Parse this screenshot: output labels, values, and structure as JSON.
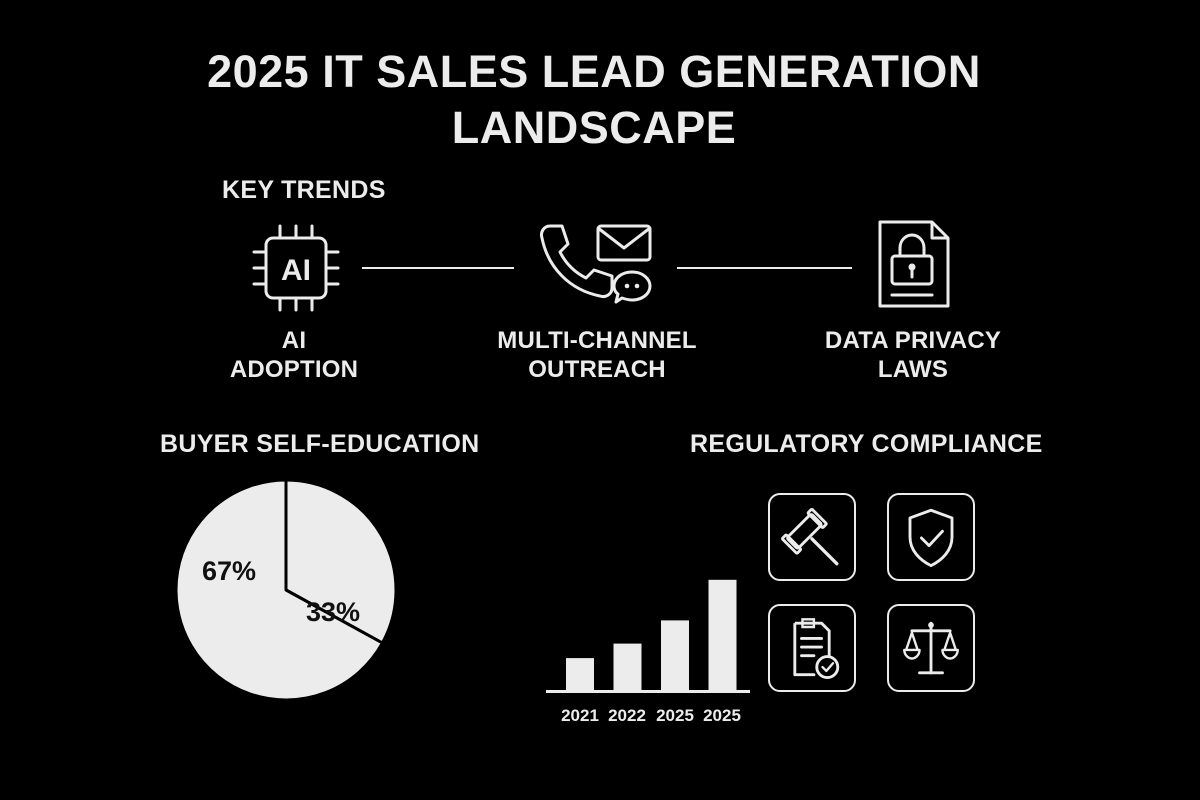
{
  "title": {
    "line1": "2025 IT SALES LEAD GENERATION",
    "line2": "LANDSCAPE"
  },
  "key_trends": {
    "heading": "KEY TRENDS",
    "items": [
      {
        "icon": "ai-chip-icon",
        "chip_text": "AI",
        "line1": "AI",
        "line2": "ADOPTION"
      },
      {
        "icon": "phone-mail-chat-icon",
        "line1": "MULTI-CHANNEL",
        "line2": "OUTREACH"
      },
      {
        "icon": "locked-document-icon",
        "line1": "DATA PRIVACY",
        "line2": "LAWS"
      }
    ]
  },
  "buyer_self_education": {
    "heading": "BUYER SELF-EDUCATION"
  },
  "regulatory_compliance": {
    "heading": "REGULATORY COMPLIANCE",
    "icons": [
      "gavel-icon",
      "shield-check-icon",
      "document-check-icon",
      "scales-icon"
    ]
  },
  "colors": {
    "background": "#000000",
    "foreground": "#ececec",
    "pie_text": "#111111"
  },
  "chart_data": [
    {
      "type": "pie",
      "values": [
        67,
        33
      ],
      "labels": [
        "67%",
        "33%"
      ]
    },
    {
      "type": "bar",
      "categories": [
        "2021",
        "2022",
        "2025",
        "2025"
      ],
      "values": [
        1.1,
        1.6,
        2.4,
        3.8
      ],
      "ylim": [
        0,
        4
      ],
      "grid": false
    }
  ]
}
